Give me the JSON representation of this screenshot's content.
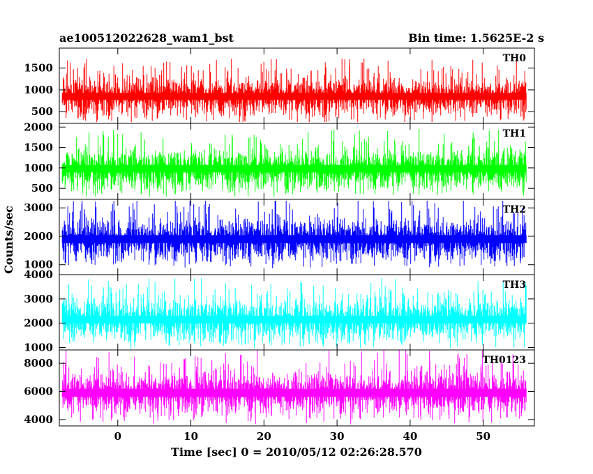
{
  "header": {
    "title": "ae100512022628_wam1_bst",
    "bin_time": "Bin time: 1.5625E-2 s"
  },
  "chart_data": {
    "type": "line",
    "xlabel": "Time [sec] 0 = 2010/05/12 02:26:28.570",
    "ylabel": "Counts/sec",
    "xlim": [
      -8,
      57
    ],
    "x_ticks": [
      0,
      10,
      20,
      30,
      40,
      50
    ],
    "x_tick_labels": [
      "0",
      "10",
      "20",
      "30",
      "40",
      "50"
    ],
    "x_data_range": [
      -7.6,
      55.9
    ],
    "bin_time": 0.015625,
    "grid": false,
    "legend": "none",
    "panels": [
      {
        "name": "TH0",
        "color": "#ff0000",
        "ylim": [
          230,
          1960
        ],
        "y_ticks": [
          500,
          1000,
          1500
        ],
        "y_tick_labels": [
          "500",
          "1000",
          "1500"
        ],
        "mean": 850,
        "spread": 230,
        "min": 260,
        "max": 1960
      },
      {
        "name": "TH1",
        "color": "#00ff00",
        "ylim": [
          230,
          2090
        ],
        "y_ticks": [
          500,
          1000,
          1500,
          2000
        ],
        "y_tick_labels": [
          "500",
          "1000",
          "1500",
          "2000"
        ],
        "mean": 980,
        "spread": 260,
        "min": 300,
        "max": 2090
      },
      {
        "name": "TH2",
        "color": "#0000ff",
        "ylim": [
          650,
          3300
        ],
        "y_ticks": [
          1000,
          2000,
          3000
        ],
        "y_tick_labels": [
          "1000",
          "2000",
          "3000"
        ],
        "mean": 1900,
        "spread": 400,
        "min": 780,
        "max": 3250
      },
      {
        "name": "TH3",
        "color": "#00ffff",
        "ylim": [
          900,
          4000
        ],
        "y_ticks": [
          1000,
          2000,
          3000,
          4000
        ],
        "y_tick_labels": [
          "1000",
          "2000",
          "3000",
          "4000"
        ],
        "mean": 2150,
        "spread": 450,
        "min": 950,
        "max": 4000
      },
      {
        "name": "TH0123",
        "color": "#ff00ff",
        "ylim": [
          3550,
          8950
        ],
        "y_ticks": [
          4000,
          6000,
          8000
        ],
        "y_tick_labels": [
          "4000",
          "6000",
          "8000"
        ],
        "mean": 5900,
        "spread": 820,
        "min": 3600,
        "max": 8950
      }
    ]
  }
}
